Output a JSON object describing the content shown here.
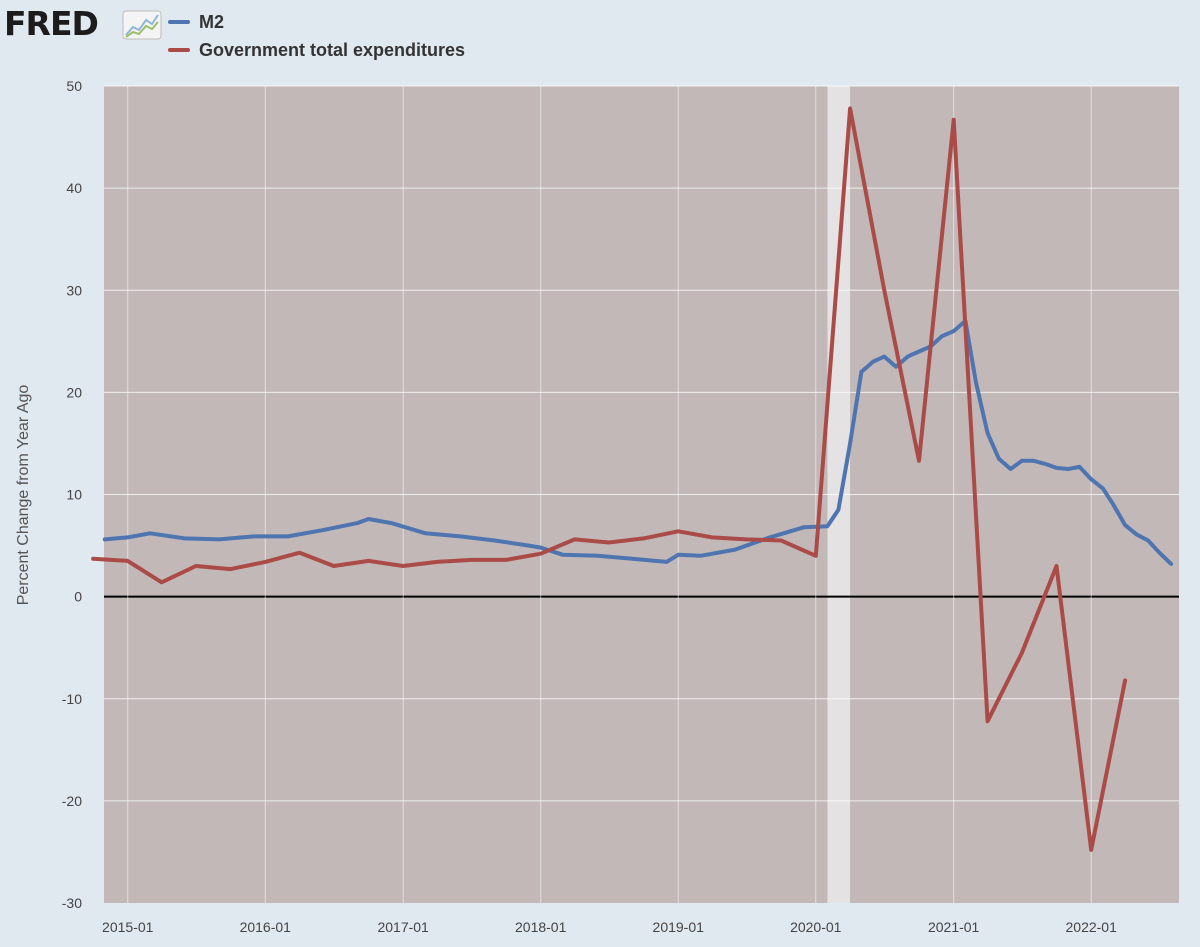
{
  "brand": {
    "logo_text": "FRED",
    "logo_icon": "line-chart-icon"
  },
  "colors": {
    "page_background": "#e1e9f0",
    "plot_background": "#c2b8b8",
    "recession_shade": "#e4e2e2",
    "m2": "#4f75b0",
    "government": "#ab4b47",
    "zero_line": "#000000"
  },
  "chart_data": {
    "type": "line",
    "ylabel": "Percent Change from Year Ago",
    "xlabel": "",
    "ylim": [
      -30,
      50
    ],
    "yticks": [
      50,
      40,
      30,
      20,
      10,
      0,
      -10,
      -20,
      -30
    ],
    "xlim": [
      "2014-10-30",
      "2022-08-22"
    ],
    "xticks": [
      "2015-01",
      "2016-01",
      "2017-01",
      "2018-01",
      "2019-01",
      "2020-01",
      "2021-01",
      "2022-01"
    ],
    "grid": true,
    "legend": "top-left",
    "recession": {
      "start": "2020-02",
      "end": "2020-04"
    },
    "series": [
      {
        "name": "M2",
        "color": "#4f75b0",
        "x": [
          "2014-11",
          "2015-01",
          "2015-03",
          "2015-06",
          "2015-09",
          "2015-12",
          "2016-03",
          "2016-06",
          "2016-09",
          "2016-10",
          "2016-12",
          "2017-03",
          "2017-06",
          "2017-09",
          "2017-12",
          "2018-01",
          "2018-03",
          "2018-06",
          "2018-09",
          "2018-12",
          "2019-01",
          "2019-03",
          "2019-06",
          "2019-09",
          "2019-12",
          "2020-02",
          "2020-03",
          "2020-04",
          "2020-05",
          "2020-06",
          "2020-07",
          "2020-08",
          "2020-09",
          "2020-10",
          "2020-11",
          "2020-12",
          "2021-01",
          "2021-02",
          "2021-03",
          "2021-04",
          "2021-05",
          "2021-06",
          "2021-07",
          "2021-08",
          "2021-09",
          "2021-10",
          "2021-11",
          "2021-12",
          "2022-01",
          "2022-02",
          "2022-03",
          "2022-04",
          "2022-05",
          "2022-06",
          "2022-07",
          "2022-08"
        ],
        "values": [
          5.6,
          5.8,
          6.2,
          5.7,
          5.6,
          5.9,
          5.9,
          6.5,
          7.2,
          7.6,
          7.2,
          6.2,
          5.9,
          5.5,
          5.0,
          4.8,
          4.1,
          4.0,
          3.7,
          3.4,
          4.1,
          4.0,
          4.6,
          5.8,
          6.8,
          6.9,
          8.5,
          15.0,
          22.0,
          23.0,
          23.5,
          22.5,
          23.5,
          24.0,
          24.5,
          25.5,
          26.0,
          27.0,
          21.0,
          16.0,
          13.5,
          12.5,
          13.3,
          13.3,
          13.0,
          12.6,
          12.5,
          12.7,
          11.5,
          10.6,
          9.0,
          7.0,
          6.1,
          5.5,
          4.3,
          3.2
        ]
      },
      {
        "name": "Government total expenditures",
        "color": "#ab4b47",
        "x": [
          "2014-10",
          "2015-01",
          "2015-04",
          "2015-07",
          "2015-10",
          "2016-01",
          "2016-04",
          "2016-07",
          "2016-10",
          "2017-01",
          "2017-04",
          "2017-07",
          "2017-10",
          "2018-01",
          "2018-04",
          "2018-07",
          "2018-10",
          "2019-01",
          "2019-04",
          "2019-07",
          "2019-10",
          "2020-01",
          "2020-04",
          "2020-07",
          "2020-10",
          "2021-01",
          "2021-04",
          "2021-07",
          "2021-10",
          "2022-01",
          "2022-04"
        ],
        "values": [
          3.7,
          3.5,
          1.4,
          3.0,
          2.7,
          3.4,
          4.3,
          3.0,
          3.5,
          3.0,
          3.4,
          3.6,
          3.6,
          4.2,
          5.6,
          5.3,
          5.7,
          6.4,
          5.8,
          5.6,
          5.5,
          4.0,
          47.8,
          30.0,
          13.3,
          46.7,
          -12.2,
          -5.5,
          3.0,
          -24.8,
          -8.2
        ]
      }
    ]
  }
}
